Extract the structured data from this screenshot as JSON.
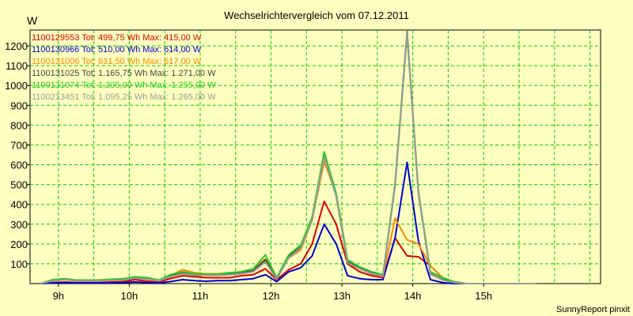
{
  "chart_data": {
    "type": "line",
    "title": "Wechselrichtervergleich vom 07.12.2011",
    "ylabel": "W",
    "xlabel": "",
    "footer": "SunnyReport pinxit",
    "ylim": [
      0,
      1280
    ],
    "xlim": [
      8.6,
      16.65
    ],
    "y_ticks": [
      100,
      200,
      300,
      400,
      500,
      600,
      700,
      800,
      900,
      1000,
      1100,
      1200
    ],
    "x_ticks": [
      {
        "value": 9,
        "label": "9h"
      },
      {
        "value": 10,
        "label": "10h"
      },
      {
        "value": 11,
        "label": "11h"
      },
      {
        "value": 12,
        "label": "12h"
      },
      {
        "value": 13,
        "label": "13h"
      },
      {
        "value": 14,
        "label": "14h"
      },
      {
        "value": 15,
        "label": "15h"
      }
    ],
    "v_grid": [
      9,
      9.5,
      10,
      10.5,
      11,
      11.5,
      12,
      12.5,
      13,
      13.5,
      14,
      14.5,
      15,
      15.5,
      16,
      16.5
    ],
    "grid": true,
    "legend_position": "top-left",
    "x": [
      8.75,
      8.92,
      9.08,
      9.25,
      9.42,
      9.58,
      9.75,
      9.92,
      10.08,
      10.25,
      10.42,
      10.58,
      10.75,
      10.92,
      11.08,
      11.25,
      11.42,
      11.58,
      11.75,
      11.92,
      12.08,
      12.25,
      12.42,
      12.58,
      12.75,
      12.92,
      13.08,
      13.25,
      13.42,
      13.58,
      13.75,
      13.92,
      14.08,
      14.25,
      14.42,
      14.58,
      14.75,
      14.92,
      15.08,
      15.25,
      15.42,
      15.58,
      15.75
    ],
    "series": [
      {
        "name": "1100129553",
        "legend": "1100129553 Tot: 499,75 Wh Max: 415,00 W",
        "color": "#dd0000",
        "values": [
          0,
          5,
          8,
          5,
          5,
          5,
          8,
          10,
          20,
          12,
          8,
          25,
          40,
          35,
          30,
          30,
          30,
          40,
          45,
          75,
          20,
          70,
          100,
          200,
          415,
          300,
          100,
          60,
          40,
          30,
          230,
          140,
          135,
          90,
          30,
          5,
          0,
          0,
          0,
          0,
          0,
          0,
          0
        ]
      },
      {
        "name": "1100130966",
        "legend": "1100130966 Tot: 510,00 Wh Max: 614,00 W",
        "color": "#0000cc",
        "values": [
          0,
          3,
          5,
          3,
          3,
          3,
          3,
          5,
          8,
          5,
          3,
          10,
          20,
          15,
          12,
          15,
          15,
          20,
          25,
          45,
          10,
          60,
          80,
          140,
          300,
          200,
          40,
          25,
          20,
          20,
          230,
          612,
          215,
          20,
          5,
          0,
          0,
          0,
          0,
          0,
          0,
          0,
          0
        ]
      },
      {
        "name": "1100131006",
        "legend": "1100131006 Tot: 831,50 Wh Max: 617,00 W",
        "color": "#ff8800",
        "values": [
          0,
          15,
          22,
          15,
          15,
          15,
          18,
          20,
          30,
          25,
          15,
          40,
          70,
          55,
          50,
          50,
          55,
          60,
          75,
          125,
          30,
          130,
          170,
          320,
          617,
          450,
          115,
          80,
          50,
          35,
          330,
          220,
          200,
          90,
          30,
          10,
          0,
          0,
          0,
          0,
          0,
          0,
          0
        ]
      },
      {
        "name": "1100131025",
        "legend": "1100131025 Tot: 1.165,75 Wh Max: 1.271,00 W",
        "color": "#444444",
        "values": [
          0,
          15,
          22,
          15,
          15,
          15,
          18,
          20,
          30,
          25,
          15,
          40,
          55,
          45,
          45,
          45,
          50,
          55,
          65,
          120,
          25,
          140,
          190,
          330,
          650,
          450,
          110,
          80,
          55,
          40,
          500,
          1271,
          460,
          50,
          20,
          5,
          0,
          0,
          0,
          0,
          0,
          0,
          0
        ]
      },
      {
        "name": "1100131074",
        "legend": "1100131074 Tot: 1.205,00 Wh Max: 1.255,00 W",
        "color": "#22cc22",
        "values": [
          0,
          20,
          25,
          18,
          18,
          18,
          22,
          25,
          35,
          30,
          18,
          45,
          60,
          50,
          48,
          48,
          55,
          60,
          75,
          145,
          30,
          145,
          195,
          335,
          665,
          455,
          120,
          85,
          60,
          45,
          505,
          1255,
          465,
          60,
          30,
          10,
          0,
          0,
          0,
          0,
          0,
          0,
          0
        ]
      },
      {
        "name": "1100213451",
        "legend": "1100213451 Tot: 1.095,25 Wh Max: 1.265,00 W",
        "color": "#999999",
        "values": [
          0,
          14,
          20,
          14,
          14,
          14,
          16,
          18,
          28,
          22,
          14,
          35,
          50,
          42,
          42,
          42,
          45,
          50,
          60,
          110,
          22,
          130,
          180,
          320,
          640,
          440,
          105,
          75,
          50,
          38,
          490,
          1265,
          455,
          48,
          18,
          5,
          0,
          0,
          0,
          0,
          0,
          0,
          0
        ]
      }
    ]
  }
}
